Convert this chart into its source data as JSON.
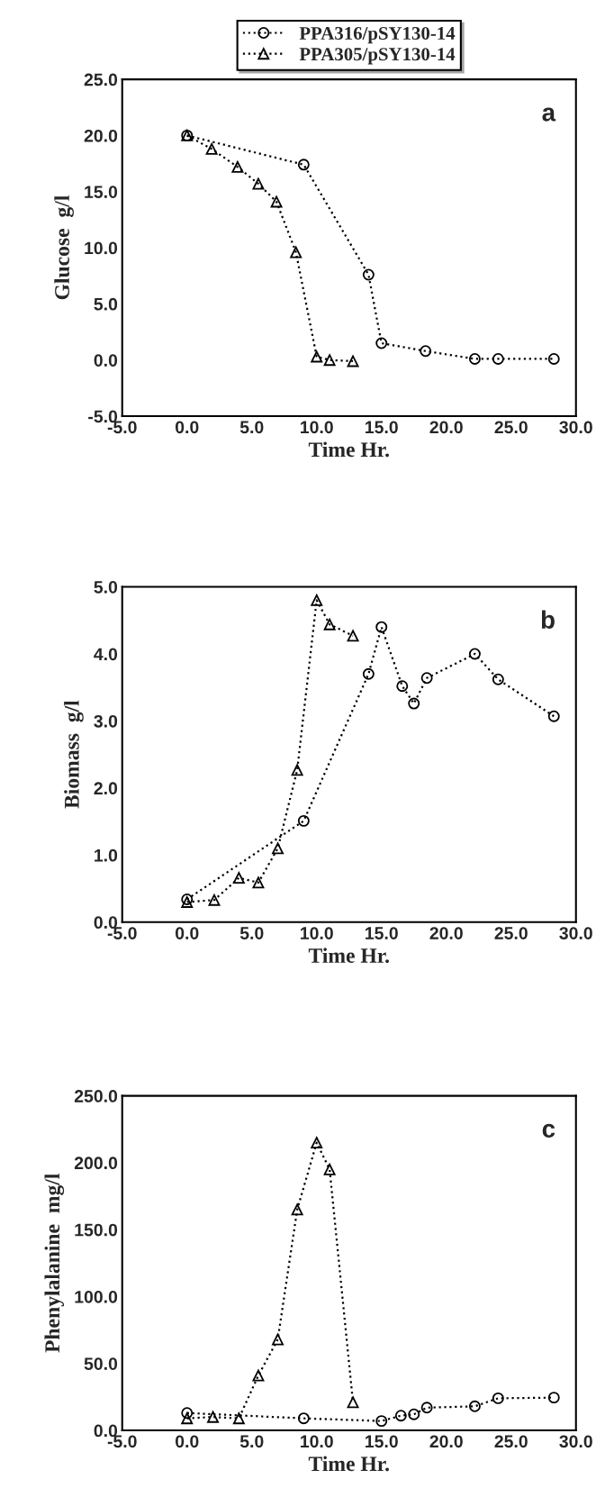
{
  "chart_data": [
    {
      "type": "line",
      "xlabel": "Time Hr.",
      "ylabel": "Glucose  g/l",
      "annotations": [
        "a"
      ],
      "legend": "top",
      "line_style": "dotted",
      "xlim": [
        -5,
        30
      ],
      "xticks": [
        {
          "value": -5,
          "label": "-5.0"
        },
        {
          "value": 0,
          "label": "0.0"
        },
        {
          "value": 5,
          "label": "5.0"
        },
        {
          "value": 10,
          "label": "10.0"
        },
        {
          "value": 15,
          "label": "15.0"
        },
        {
          "value": 20,
          "label": "20.0"
        },
        {
          "value": 25,
          "label": "25.0"
        },
        {
          "value": 30,
          "label": "30.0"
        }
      ],
      "ylim": [
        -5,
        25
      ],
      "yticks": [
        {
          "value": -5,
          "label": "-5.0"
        },
        {
          "value": 0,
          "label": "0.0"
        },
        {
          "value": 5,
          "label": "5.0"
        },
        {
          "value": 10,
          "label": "10.0"
        },
        {
          "value": 15,
          "label": "15.0"
        },
        {
          "value": 20,
          "label": "20.0"
        },
        {
          "value": 25,
          "label": "25.0"
        }
      ],
      "series": [
        {
          "name": "PPA316/pSY130-14",
          "color": "#000000",
          "marker": "circle",
          "x": [
            0,
            9,
            14,
            15,
            18.4,
            22.2,
            24,
            28.3
          ],
          "values": [
            20,
            17.4,
            7.6,
            1.5,
            0.8,
            0.1,
            0.1,
            0.1
          ]
        },
        {
          "name": "PPA305/pSY130-14",
          "color": "#000000",
          "marker": "triangle",
          "x": [
            0,
            1.9,
            3.9,
            5.5,
            6.9,
            8.4,
            10,
            11,
            12.8
          ],
          "values": [
            20,
            18.8,
            17.2,
            15.7,
            14.1,
            9.6,
            0.3,
            0.0,
            -0.1
          ]
        }
      ]
    },
    {
      "type": "line",
      "xlabel": "Time Hr.",
      "ylabel": "Biomass  g/l",
      "annotations": [
        "b"
      ],
      "line_style": "dotted",
      "xlim": [
        -5,
        30
      ],
      "xticks": [
        {
          "value": -5,
          "label": "-5.0"
        },
        {
          "value": 0,
          "label": "0.0"
        },
        {
          "value": 5,
          "label": "5.0"
        },
        {
          "value": 10,
          "label": "10.0"
        },
        {
          "value": 15,
          "label": "15.0"
        },
        {
          "value": 20,
          "label": "20.0"
        },
        {
          "value": 25,
          "label": "25.0"
        },
        {
          "value": 30,
          "label": "30.0"
        }
      ],
      "ylim": [
        0,
        5
      ],
      "yticks": [
        {
          "value": 0,
          "label": "0.0"
        },
        {
          "value": 1,
          "label": "1.0"
        },
        {
          "value": 2,
          "label": "2.0"
        },
        {
          "value": 3,
          "label": "3.0"
        },
        {
          "value": 4,
          "label": "4.0"
        },
        {
          "value": 5,
          "label": "5.0"
        }
      ],
      "series": [
        {
          "color": "#000000",
          "marker": "circle",
          "x": [
            0,
            9,
            14,
            15,
            16.6,
            17.5,
            18.5,
            22.2,
            24,
            28.3
          ],
          "values": [
            0.34,
            1.51,
            3.7,
            4.4,
            3.52,
            3.26,
            3.64,
            4.0,
            3.62,
            3.07
          ]
        },
        {
          "color": "#000000",
          "marker": "triangle",
          "x": [
            0,
            2.1,
            4,
            5.5,
            7,
            8.5,
            10,
            11,
            12.8
          ],
          "values": [
            0.3,
            0.33,
            0.66,
            0.59,
            1.1,
            2.27,
            4.8,
            4.44,
            4.27
          ]
        }
      ]
    },
    {
      "type": "line",
      "xlabel": "Time Hr.",
      "ylabel": "Phenylalanine  mg/l",
      "annotations": [
        "c"
      ],
      "line_style": "dotted",
      "xlim": [
        -5,
        30
      ],
      "xticks": [
        {
          "value": -5,
          "label": "-5.0"
        },
        {
          "value": 0,
          "label": "0.0"
        },
        {
          "value": 5,
          "label": "5.0"
        },
        {
          "value": 10,
          "label": "10.0"
        },
        {
          "value": 15,
          "label": "15.0"
        },
        {
          "value": 20,
          "label": "20.0"
        },
        {
          "value": 25,
          "label": "25.0"
        },
        {
          "value": 30,
          "label": "30.0"
        }
      ],
      "ylim": [
        0,
        250
      ],
      "yticks": [
        {
          "value": 0,
          "label": "0.0"
        },
        {
          "value": 50,
          "label": "50.0"
        },
        {
          "value": 100,
          "label": "100.0"
        },
        {
          "value": 150,
          "label": "150.0"
        },
        {
          "value": 200,
          "label": "200.0"
        },
        {
          "value": 250,
          "label": "250.0"
        }
      ],
      "series": [
        {
          "color": "#000000",
          "marker": "circle",
          "x": [
            0,
            9,
            15,
            16.5,
            17.5,
            18.5,
            22.2,
            24,
            28.3
          ],
          "values": [
            13,
            9,
            7,
            11,
            12,
            17,
            18,
            24,
            24.5
          ]
        },
        {
          "color": "#000000",
          "marker": "triangle",
          "x": [
            0,
            2,
            4,
            5.5,
            7,
            8.5,
            10,
            11,
            12.8
          ],
          "values": [
            9,
            10,
            9,
            41,
            68,
            165,
            215,
            195,
            21
          ]
        }
      ]
    }
  ]
}
